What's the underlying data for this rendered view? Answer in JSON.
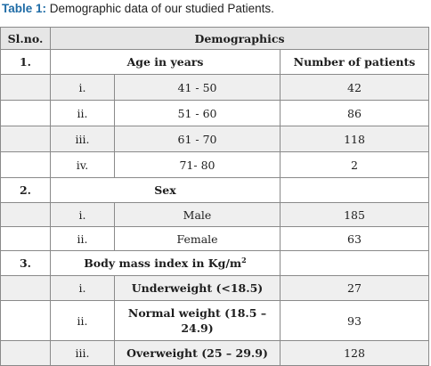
{
  "caption": {
    "label": "Table 1:",
    "text": " Demographic data of our studied Patients."
  },
  "table": {
    "col_slno": "Sl.no.",
    "col_demographics": "Demographics",
    "sections": [
      {
        "number": "1.",
        "title": "Age in years",
        "value_header": "Number of patients",
        "rows": [
          {
            "index": "i.",
            "label": "41 - 50",
            "value": "42"
          },
          {
            "index": "ii.",
            "label": "51 - 60",
            "value": "86"
          },
          {
            "index": "iii.",
            "label": "61 - 70",
            "value": "118"
          },
          {
            "index": "iv.",
            "label": "71- 80",
            "value": "2"
          }
        ]
      },
      {
        "number": "2.",
        "title": "Sex",
        "rows": [
          {
            "index": "i.",
            "label": "Male",
            "value": "185"
          },
          {
            "index": "ii.",
            "label": "Female",
            "value": "63"
          }
        ]
      },
      {
        "number": "3.",
        "title": "Body mass index in Kg/m",
        "title_sup": "2",
        "rows": [
          {
            "index": "i.",
            "label": "Underweight (<18.5)",
            "value": "27"
          },
          {
            "index": "ii.",
            "label": "Normal weight (18.5 – 24.9)",
            "value": "93"
          },
          {
            "index": "iii.",
            "label": "Overweight (25 – 29.9)",
            "value": "128"
          }
        ]
      }
    ]
  }
}
